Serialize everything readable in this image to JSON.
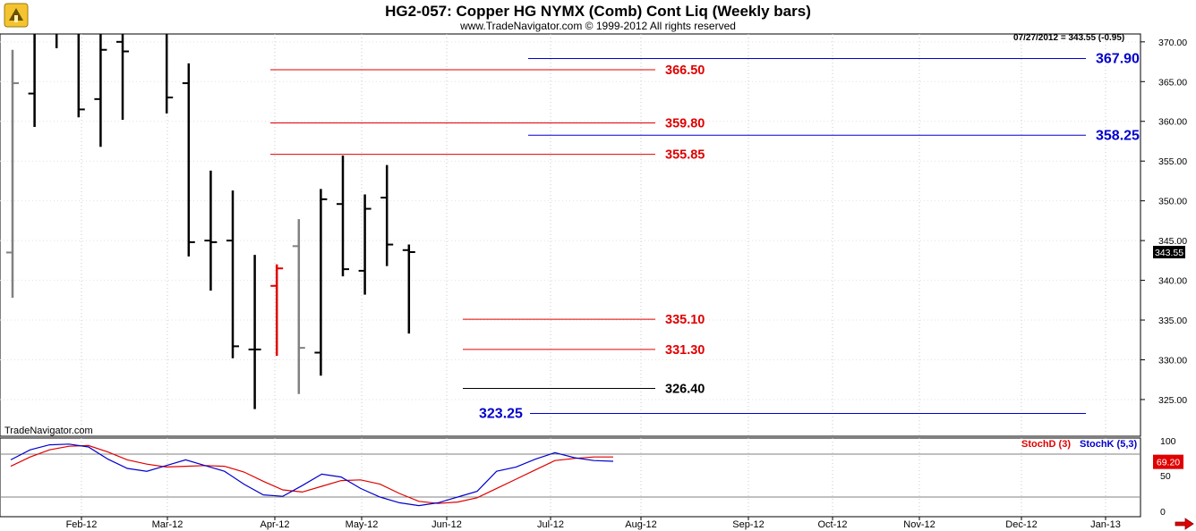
{
  "header": {
    "title": "HG2-057:  Copper HG NYMX (Comb) Cont Liq  (Weekly bars)",
    "copyright": "www.TradeNavigator.com © 1999-2012 All rights reserved",
    "watermark": "TradeNavigator.com",
    "last_quote": "07/27/2012 = 343.55 (-0.95)"
  },
  "indicator": {
    "stoch_d_label": "StochD (3)",
    "stoch_k_label": "StochK (5,3)",
    "stoch_d_color": "#e00000",
    "stoch_k_color": "#0000cc",
    "current_value": "69.20",
    "y_ticks": [
      "100",
      "50",
      "0"
    ],
    "levels": [
      80,
      20
    ]
  },
  "chart_data": {
    "type": "ohlc",
    "ylim": [
      322,
      372
    ],
    "y_ticks": [
      "325.00",
      "330.00",
      "335.00",
      "340.00",
      "345.00",
      "350.00",
      "355.00",
      "360.00",
      "365.00",
      "370.00"
    ],
    "x_ticks": [
      "Feb-12",
      "Mar-12",
      "Apr-12",
      "May-12",
      "Jun-12",
      "Jul-12",
      "Aug-12",
      "Sep-12",
      "Oct-12",
      "Nov-12",
      "Dec-12",
      "Jan-13"
    ],
    "last_price_label": "343.55",
    "bars": [
      {
        "high": 369.0,
        "low": 337.8,
        "open": 343.5,
        "close": 364.8,
        "color": "#808080"
      },
      {
        "high": 372.0,
        "low": 359.3,
        "open": 363.5,
        "close": 372.0,
        "color": "#000000"
      },
      {
        "high": 372.0,
        "low": 369.2,
        "open": 372.0,
        "close": 372.0,
        "color": "#000000"
      },
      {
        "high": 372.0,
        "low": 360.5,
        "open": 371.0,
        "close": 361.5,
        "color": "#000000"
      },
      {
        "high": 372.0,
        "low": 356.8,
        "open": 362.8,
        "close": 369.0,
        "color": "#000000"
      },
      {
        "high": 372.0,
        "low": 360.2,
        "open": 370.0,
        "close": 368.8,
        "color": "#000000"
      },
      {
        "high": 372.0,
        "low": 371.0,
        "open": 372.0,
        "close": 372.0,
        "color": "#000000"
      },
      {
        "high": 372.0,
        "low": 361.0,
        "open": 371.2,
        "close": 363.0,
        "color": "#000000"
      },
      {
        "high": 367.3,
        "low": 343.0,
        "open": 364.8,
        "close": 344.8,
        "color": "#000000"
      },
      {
        "high": 353.8,
        "low": 338.7,
        "open": 345.0,
        "close": 344.8,
        "color": "#000000"
      },
      {
        "high": 351.3,
        "low": 330.2,
        "open": 345.0,
        "close": 331.7,
        "color": "#000000"
      },
      {
        "high": 343.2,
        "low": 323.8,
        "open": 331.3,
        "close": 331.3,
        "color": "#000000"
      },
      {
        "high": 342.0,
        "low": 330.5,
        "open": 339.3,
        "close": 341.5,
        "color": "#e00000"
      },
      {
        "high": 347.7,
        "low": 325.7,
        "open": 344.3,
        "close": 331.5,
        "color": "#808080"
      },
      {
        "high": 351.5,
        "low": 328.0,
        "open": 330.9,
        "close": 350.2,
        "color": "#000000"
      },
      {
        "high": 355.7,
        "low": 340.5,
        "open": 349.6,
        "close": 341.4,
        "color": "#000000"
      },
      {
        "high": 350.8,
        "low": 338.2,
        "open": 341.2,
        "close": 349.0,
        "color": "#000000"
      },
      {
        "high": 354.5,
        "low": 341.8,
        "open": 350.4,
        "close": 344.5,
        "color": "#000000"
      },
      {
        "high": 344.5,
        "low": 333.3,
        "open": 343.8,
        "close": 343.55,
        "color": "#000000"
      }
    ],
    "levels": [
      {
        "value": 366.5,
        "label": "366.50",
        "color": "#e00000"
      },
      {
        "value": 359.8,
        "label": "359.80",
        "color": "#e00000"
      },
      {
        "value": 355.85,
        "label": "355.85",
        "color": "#e00000"
      },
      {
        "value": 335.1,
        "label": "335.10",
        "color": "#e00000"
      },
      {
        "value": 331.3,
        "label": "331.30",
        "color": "#e00000"
      },
      {
        "value": 326.4,
        "label": "326.40",
        "color": "#000000"
      },
      {
        "value": 367.9,
        "label": "367.90",
        "color": "#0000cc"
      },
      {
        "value": 358.25,
        "label": "358.25",
        "color": "#0000cc"
      },
      {
        "value": 323.25,
        "label": "323.25",
        "color": "#0000cc"
      }
    ],
    "stoch_k": [
      72,
      86,
      93,
      94,
      90,
      73,
      60,
      56,
      64,
      72,
      64,
      56,
      38,
      23,
      21,
      36,
      52,
      48,
      32,
      20,
      12,
      8,
      12,
      20,
      28,
      56,
      62,
      73,
      82,
      75,
      71,
      70
    ],
    "stoch_d": [
      63,
      76,
      86,
      91,
      92,
      83,
      72,
      66,
      62,
      63,
      64,
      63,
      55,
      42,
      30,
      27,
      35,
      43,
      44,
      38,
      25,
      14,
      11,
      13,
      19,
      32,
      45,
      58,
      71,
      74,
      76,
      76
    ]
  }
}
